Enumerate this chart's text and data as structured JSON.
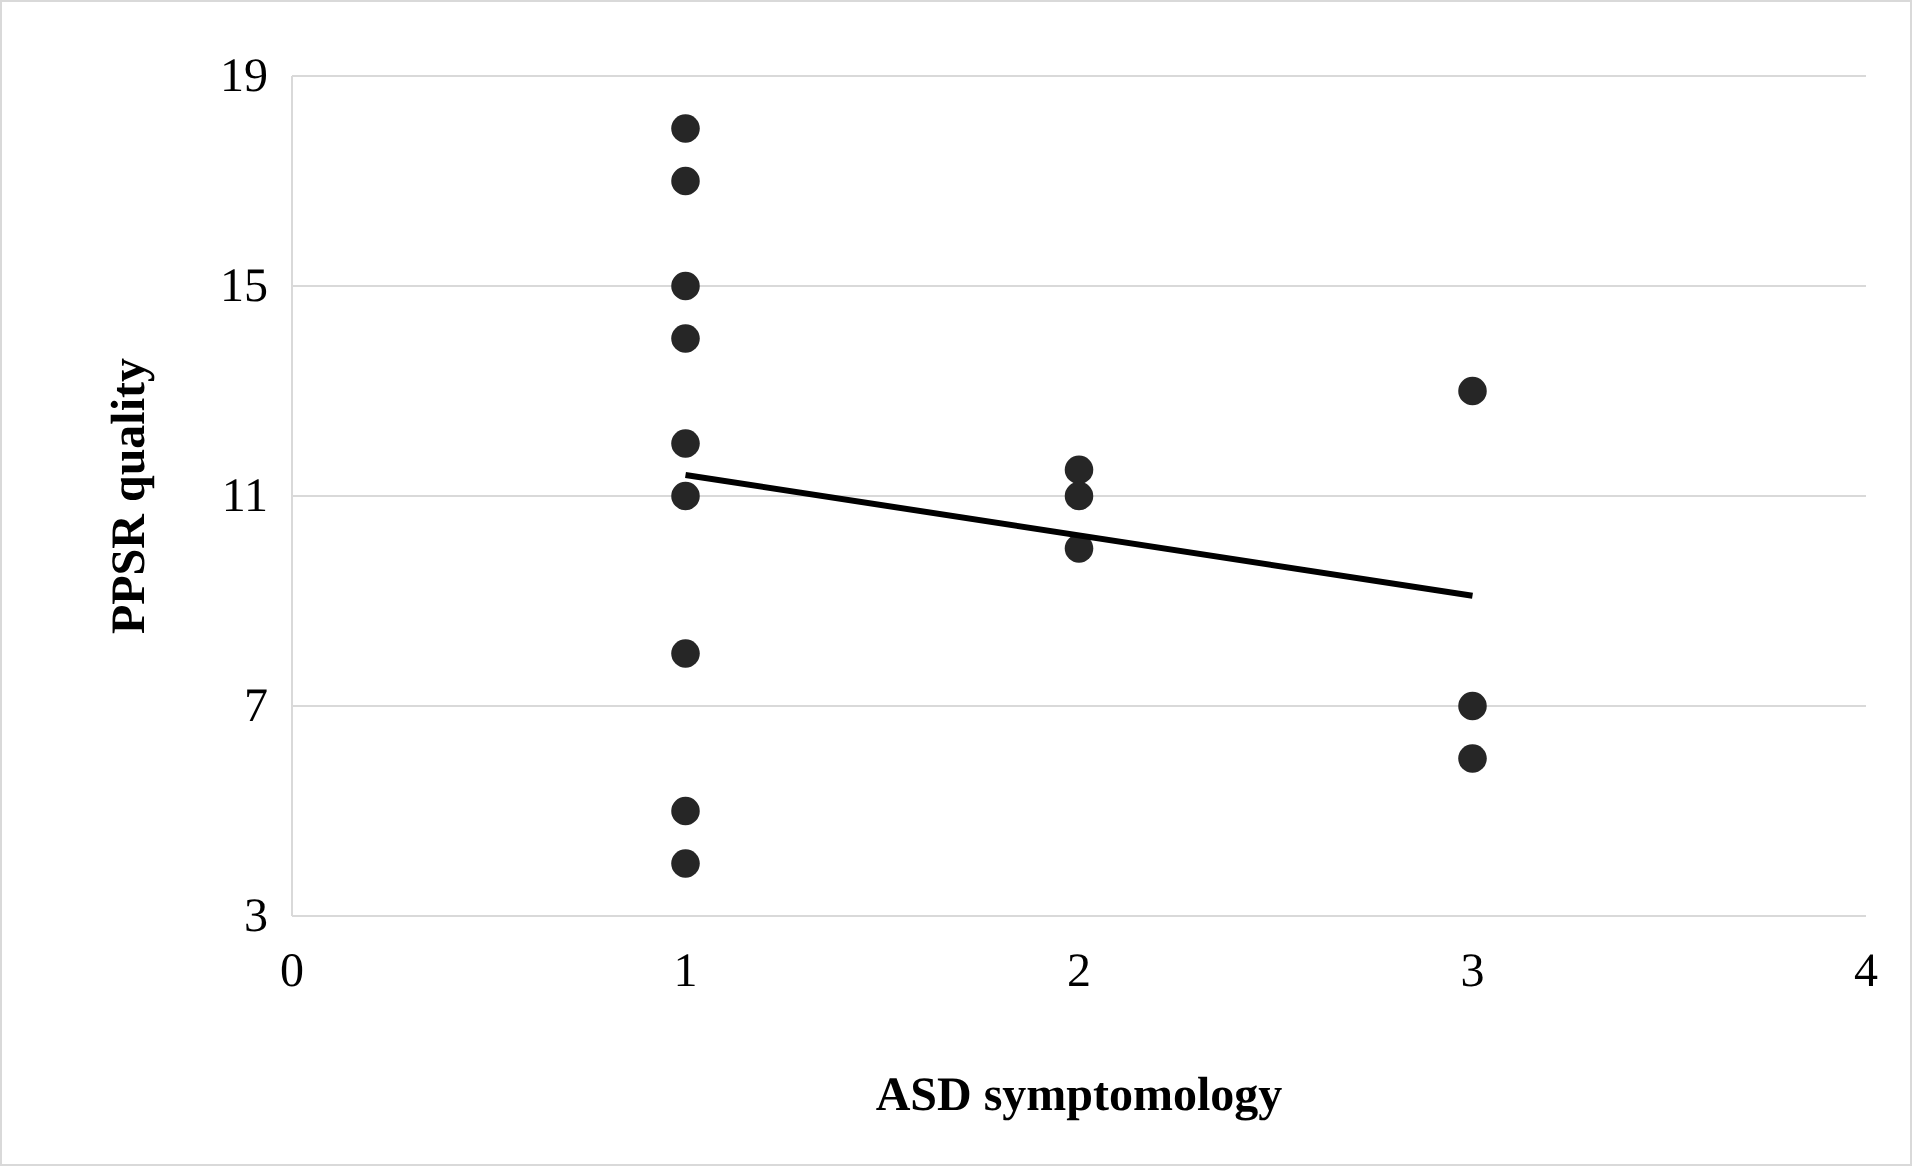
{
  "chart_data": {
    "type": "scatter",
    "xlabel": "ASD symptomology",
    "ylabel": "PPSR quality",
    "xlim": [
      0,
      4
    ],
    "xticks": [
      0,
      1,
      2,
      3,
      4
    ],
    "ylim": [
      3,
      19
    ],
    "yticks": [
      3,
      7,
      11,
      15,
      19
    ],
    "grid": "y",
    "marker": "circle",
    "series": [
      {
        "type": "scatter",
        "color": "#262626",
        "x": [
          1,
          1,
          1,
          1,
          1,
          1,
          1,
          1,
          1,
          2,
          2,
          2,
          3,
          3,
          3
        ],
        "values": [
          18,
          17,
          15,
          14,
          12,
          11,
          8,
          5,
          4,
          11.5,
          11,
          10,
          13,
          7,
          6
        ]
      },
      {
        "type": "line",
        "color": "#000000",
        "x": [
          1,
          3
        ],
        "values": [
          11.4,
          9.1
        ],
        "marker": "none",
        "line_style": "solid"
      }
    ]
  }
}
